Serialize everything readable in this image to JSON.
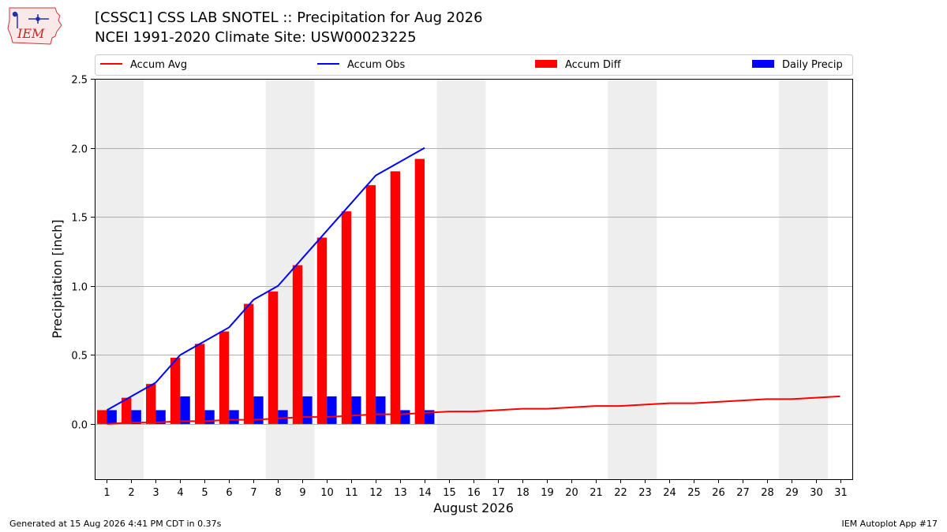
{
  "header": {
    "title_line1": "[CSSC1] CSS LAB SNOTEL :: Precipitation for Aug 2026",
    "title_line2": "NCEI 1991-2020 Climate Site: USW00023225",
    "logo_text": "IEM"
  },
  "footer": {
    "left": "Generated at 15 Aug 2026 4:41 PM CDT in 0.37s",
    "right": "IEM Autoplot App #17"
  },
  "chart_data": {
    "type": "bar",
    "xlabel": "August 2026",
    "ylabel": "Precipitation [inch]",
    "ylim": [
      -0.4,
      2.5
    ],
    "xlim": [
      0.5,
      31.5
    ],
    "yticks": [
      0.0,
      0.5,
      1.0,
      1.5,
      2.0,
      2.5
    ],
    "ytick_labels": [
      "0.0",
      "0.5",
      "1.0",
      "1.5",
      "2.0",
      "2.5"
    ],
    "days": [
      1,
      2,
      3,
      4,
      5,
      6,
      7,
      8,
      9,
      10,
      11,
      12,
      13,
      14,
      15,
      16,
      17,
      18,
      19,
      20,
      21,
      22,
      23,
      24,
      25,
      26,
      27,
      28,
      29,
      30,
      31
    ],
    "weekend_spans": [
      [
        0.5,
        2.5
      ],
      [
        7.5,
        9.5
      ],
      [
        14.5,
        16.5
      ],
      [
        21.5,
        23.5
      ],
      [
        28.5,
        30.5
      ]
    ],
    "grid": "horizontal",
    "legend_position": "top",
    "colors": {
      "accum_avg": "#ff0000",
      "accum_obs": "#0000ff",
      "accum_diff": "#ff0000",
      "daily_precip": "#0000ff",
      "weekend": "#eeeeee",
      "grid": "#b0b0b0"
    },
    "series": [
      {
        "name": "Accum Avg",
        "kind": "line",
        "x": [
          1,
          2,
          3,
          4,
          5,
          6,
          7,
          8,
          9,
          10,
          11,
          12,
          13,
          14,
          15,
          16,
          17,
          18,
          19,
          20,
          21,
          22,
          23,
          24,
          25,
          26,
          27,
          28,
          29,
          30,
          31
        ],
        "values": [
          0.0,
          0.01,
          0.01,
          0.02,
          0.02,
          0.03,
          0.03,
          0.04,
          0.05,
          0.05,
          0.06,
          0.07,
          0.07,
          0.08,
          0.09,
          0.09,
          0.1,
          0.11,
          0.11,
          0.12,
          0.13,
          0.13,
          0.14,
          0.15,
          0.15,
          0.16,
          0.17,
          0.18,
          0.18,
          0.19,
          0.2
        ]
      },
      {
        "name": "Accum Obs",
        "kind": "line",
        "x": [
          1,
          2,
          3,
          4,
          5,
          6,
          7,
          8,
          9,
          10,
          11,
          12,
          13,
          14
        ],
        "values": [
          0.1,
          0.2,
          0.3,
          0.5,
          0.6,
          0.7,
          0.9,
          1.0,
          1.2,
          1.4,
          1.6,
          1.8,
          1.9,
          2.0
        ]
      },
      {
        "name": "Accum Diff",
        "kind": "bar",
        "x": [
          1,
          2,
          3,
          4,
          5,
          6,
          7,
          8,
          9,
          10,
          11,
          12,
          13,
          14
        ],
        "values": [
          0.1,
          0.19,
          0.29,
          0.48,
          0.58,
          0.67,
          0.87,
          0.96,
          1.15,
          1.35,
          1.54,
          1.73,
          1.83,
          1.92
        ]
      },
      {
        "name": "Daily Precip",
        "kind": "bar",
        "x": [
          1,
          2,
          3,
          4,
          5,
          6,
          7,
          8,
          9,
          10,
          11,
          12,
          13,
          14
        ],
        "values": [
          0.1,
          0.1,
          0.1,
          0.2,
          0.1,
          0.1,
          0.2,
          0.1,
          0.2,
          0.2,
          0.2,
          0.2,
          0.1,
          0.1
        ]
      }
    ]
  }
}
